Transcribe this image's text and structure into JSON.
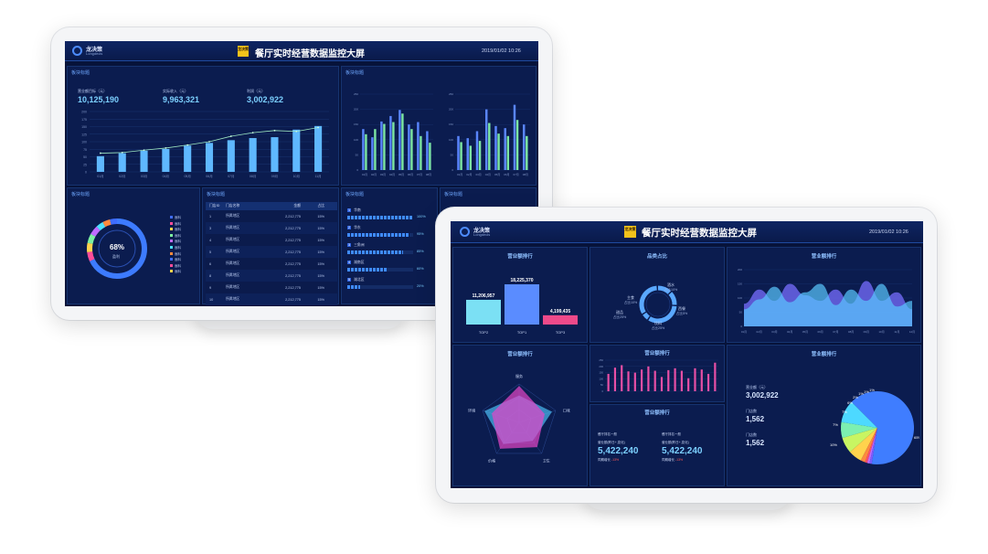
{
  "screen_a": {
    "logo_name": "龙决策",
    "logo_sub": "Longdecis",
    "badge": "龙决策",
    "title": "餐厅实时经营数据监控大屏",
    "clock": "2019/01/02  10:26",
    "panel_label": "板块标题",
    "kpis": [
      {
        "label": "营业额目标（元）",
        "value": "10,125,190"
      },
      {
        "label": "实际收入（元）",
        "value": "9,963,321"
      },
      {
        "label": "利润（元）",
        "value": "3,002,922"
      }
    ],
    "donut": {
      "center": "68%",
      "label": "盈利",
      "legend": [
        "面料",
        "面料",
        "面料",
        "面料",
        "面料",
        "面料",
        "面料",
        "面料",
        "面料",
        "面料"
      ]
    },
    "table": {
      "headers": [
        "门店ID",
        "门店名称",
        "金额",
        "占比"
      ],
      "rows": [
        [
          "1",
          "所属地区",
          "2,212,775",
          "15%"
        ],
        [
          "3",
          "所属地区",
          "2,212,775",
          "15%"
        ],
        [
          "4",
          "所属地区",
          "2,212,775",
          "15%"
        ],
        [
          "5",
          "所属地区",
          "2,212,775",
          "15%"
        ],
        [
          "6",
          "所属地区",
          "2,212,775",
          "15%"
        ],
        [
          "8",
          "所属地区",
          "2,212,775",
          "15%"
        ],
        [
          "9",
          "所属地区",
          "2,212,775",
          "15%"
        ],
        [
          "10",
          "所属地区",
          "2,212,775",
          "15%"
        ]
      ]
    },
    "progress": [
      {
        "rank": "1",
        "name": "华南",
        "value": "100%",
        "level": 1.0
      },
      {
        "rank": "2",
        "name": "华东",
        "value": "95%",
        "level": 0.95
      },
      {
        "rank": "3",
        "name": "三角洲",
        "value": "85%",
        "level": 0.85
      },
      {
        "rank": "4",
        "name": "湖南区",
        "value": "60%",
        "level": 0.6
      },
      {
        "rank": "5",
        "name": "湖北区",
        "value": "20%",
        "level": 0.2
      }
    ]
  },
  "screen_b": {
    "logo_name": "龙决策",
    "logo_sub": "Longdecis",
    "badge": "龙决策",
    "title": "餐厅实时经营数据监控大屏",
    "clock": "2019/01/02  10:26",
    "panels": {
      "p1": "营业额排行",
      "p2": "品类占比",
      "p3": "营业额排行",
      "p4": "营业额排行",
      "p5": "营业额排行",
      "p6": "营业额排行",
      "p7": "营业额排行"
    },
    "radar_labels": [
      "服务",
      "口味",
      "卫生",
      "价格",
      "环境"
    ],
    "stats": [
      {
        "label": "营业额（元）",
        "value": "3,002,922"
      },
      {
        "label": "门店数",
        "value": "1,562"
      },
      {
        "label": "门店数",
        "value": "1,562"
      }
    ],
    "cards": [
      {
        "head": "餐厅排名一般",
        "sub": "营业额(昨日+,变化)",
        "value": "5,422,240",
        "change_label": "同期增长",
        "change": "-13%"
      },
      {
        "head": "餐厅排名一般",
        "sub": "营业额(昨日+,变化)",
        "value": "5,422,240",
        "change_label": "同期增长",
        "change": "-13%"
      }
    ]
  },
  "chart_data": [
    {
      "type": "bar",
      "title": "",
      "categories": [
        "01月",
        "02月",
        "03月",
        "04月",
        "05月",
        "06月",
        "07月",
        "08月",
        "09月",
        "10月",
        "11月"
      ],
      "series": [
        {
          "values": [
            52,
            62,
            70,
            76,
            87,
            96,
            105,
            112,
            115,
            140,
            152
          ]
        },
        {
          "values": [
            62,
            64,
            72,
            79,
            89,
            100,
            118,
            130,
            137,
            134,
            147
          ]
        }
      ],
      "ylim": [
        0,
        200
      ],
      "yticks": [
        0,
        25,
        50,
        75,
        100,
        125,
        150,
        175,
        200
      ]
    },
    {
      "type": "bar",
      "title": "",
      "categories": [
        "01月",
        "02月",
        "03月",
        "04月",
        "05月",
        "06月",
        "07月",
        "08月"
      ],
      "series": [
        {
          "values": [
            135,
            108,
            160,
            178,
            198,
            150,
            158,
            128
          ]
        },
        {
          "values": [
            118,
            135,
            152,
            158,
            186,
            135,
            112,
            90
          ]
        }
      ],
      "ylim": [
        0,
        250
      ]
    },
    {
      "type": "bar",
      "title": "",
      "categories": [
        "01月",
        "02月",
        "03月",
        "04月",
        "05月",
        "06月",
        "07月",
        "08月"
      ],
      "series": [
        {
          "values": [
            112,
            105,
            128,
            200,
            145,
            138,
            215,
            150
          ]
        },
        {
          "values": [
            92,
            80,
            96,
            155,
            120,
            112,
            165,
            112
          ]
        }
      ],
      "ylim": [
        0,
        250
      ]
    },
    {
      "type": "bar",
      "title": "营业额排行",
      "categories": [
        "TOP2",
        "TOP1",
        "TOP3"
      ],
      "values": [
        11206957,
        18225370,
        4199435
      ],
      "data_labels": [
        "11,206,957",
        "18,225,370",
        "4,199,435"
      ],
      "colors": [
        "#7be0f4",
        "#5a8cff",
        "#ee4a8a"
      ]
    },
    {
      "type": "pie",
      "title": "品类占比",
      "categories": [
        "主食",
        "酒水",
        "甜品",
        "西餐",
        "饮料"
      ],
      "values": [
        10,
        10,
        25,
        5,
        25
      ],
      "data_labels": [
        "占比10%",
        "占比10%",
        "占比25%",
        "占比5%",
        "占比25%"
      ]
    },
    {
      "type": "area",
      "title": "营业额排行",
      "categories": [
        "01月",
        "02月",
        "03月",
        "04月",
        "05月",
        "06月",
        "07月",
        "08月",
        "09月",
        "10月",
        "11月",
        "12月"
      ],
      "series": [
        {
          "values": [
            80,
            130,
            90,
            150,
            110,
            90,
            130,
            80,
            160,
            90,
            120,
            60
          ]
        },
        {
          "values": [
            60,
            95,
            140,
            85,
            120,
            150,
            75,
            130,
            90,
            150,
            70,
            90
          ]
        }
      ],
      "ylim": [
        0,
        200
      ]
    },
    {
      "type": "bar",
      "title": "营业额排行",
      "categories": [
        "1",
        "2",
        "3",
        "4",
        "5",
        "6",
        "7",
        "8",
        "9",
        "10",
        "11",
        "12",
        "13",
        "14",
        "15",
        "16",
        "17"
      ],
      "values": [
        140,
        190,
        210,
        160,
        150,
        175,
        200,
        165,
        115,
        170,
        185,
        165,
        105,
        185,
        175,
        140,
        230
      ],
      "ylim": [
        0,
        250
      ]
    },
    {
      "type": "pie",
      "title": "营业额排行",
      "categories": [
        "a",
        "b",
        "c",
        "d",
        "e",
        "f",
        "g",
        "h",
        "i"
      ],
      "values": [
        65,
        10,
        7,
        7,
        6,
        2,
        1,
        1,
        1
      ],
      "data_labels": [
        "65%",
        "10%",
        "7%",
        "7%",
        "6%",
        "2%",
        "1%",
        "1%",
        "1%"
      ]
    }
  ]
}
